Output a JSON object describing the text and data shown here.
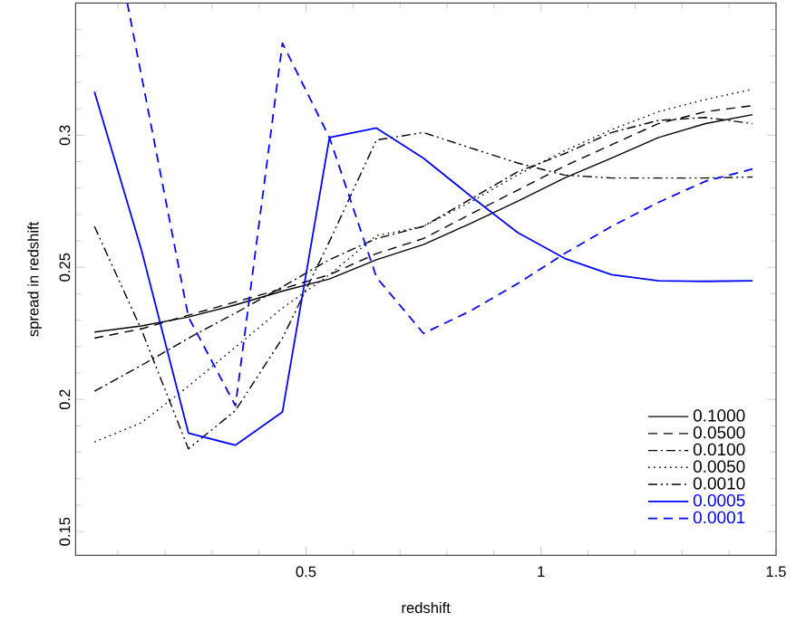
{
  "chart_data": {
    "type": "line",
    "xlabel": "redshift",
    "ylabel": "spread in redshift",
    "x": [
      0.05,
      0.15,
      0.25,
      0.35,
      0.45,
      0.55,
      0.65,
      0.75,
      0.85,
      0.95,
      1.05,
      1.15,
      1.25,
      1.35,
      1.45
    ],
    "xlim": [
      0.01,
      1.5
    ],
    "ylim": [
      0.141,
      0.35
    ],
    "xticks": [
      {
        "value": 0.1,
        "label": null
      },
      {
        "value": 0.2,
        "label": null
      },
      {
        "value": 0.3,
        "label": null
      },
      {
        "value": 0.4,
        "label": null
      },
      0.5,
      {
        "value": 0.6,
        "label": null
      },
      {
        "value": 0.7,
        "label": null
      },
      {
        "value": 0.8,
        "label": null
      },
      {
        "value": 0.9,
        "label": null
      },
      1,
      {
        "value": 1.1,
        "label": null
      },
      {
        "value": 1.2,
        "label": null
      },
      {
        "value": 1.3,
        "label": null
      },
      {
        "value": 1.4,
        "label": null
      },
      1.5
    ],
    "yticks": [
      0.15,
      {
        "value": 0.16,
        "label": null
      },
      {
        "value": 0.17,
        "label": null
      },
      {
        "value": 0.18,
        "label": null
      },
      {
        "value": 0.19,
        "label": null
      },
      0.2,
      {
        "value": 0.21,
        "label": null
      },
      {
        "value": 0.22,
        "label": null
      },
      {
        "value": 0.23,
        "label": null
      },
      {
        "value": 0.24,
        "label": null
      },
      0.25,
      {
        "value": 0.26,
        "label": null
      },
      {
        "value": 0.27,
        "label": null
      },
      {
        "value": 0.28,
        "label": null
      },
      {
        "value": 0.29,
        "label": null
      },
      0.3,
      {
        "value": 0.31,
        "label": null
      },
      {
        "value": 0.32,
        "label": null
      },
      {
        "value": 0.33,
        "label": null
      },
      {
        "value": 0.34,
        "label": null
      }
    ],
    "legend": "bottom right",
    "grid": false,
    "series": [
      {
        "name": "0.1000",
        "color": "#000000",
        "line_style": "solid",
        "values": [
          0.2255,
          0.2278,
          0.2312,
          0.2358,
          0.241,
          0.2456,
          0.2529,
          0.2586,
          0.2666,
          0.275,
          0.2838,
          0.2913,
          0.2991,
          0.3044,
          0.3078
        ]
      },
      {
        "name": "0.0500",
        "color": "#000000",
        "line_style": "dashed",
        "values": [
          0.2232,
          0.2267,
          0.2319,
          0.2369,
          0.2419,
          0.2472,
          0.2552,
          0.2609,
          0.2701,
          0.2792,
          0.2883,
          0.2964,
          0.3044,
          0.3089,
          0.3112
        ]
      },
      {
        "name": "0.0100",
        "color": "#000000",
        "line_style": "dashdot",
        "values": [
          0.2031,
          0.2129,
          0.2232,
          0.2327,
          0.2426,
          0.2529,
          0.2609,
          0.2655,
          0.2758,
          0.2861,
          0.293,
          0.301,
          0.3056,
          0.3067,
          0.3044
        ]
      },
      {
        "name": "0.0050",
        "color": "#000000",
        "line_style": "dotted",
        "values": [
          0.1839,
          0.1912,
          0.205,
          0.2198,
          0.2346,
          0.2472,
          0.262,
          0.2655,
          0.2747,
          0.285,
          0.2941,
          0.3021,
          0.3089,
          0.3135,
          0.3174
        ]
      },
      {
        "name": "0.0010",
        "color": "#000000",
        "line_style": "dashdotdot",
        "values": [
          0.2655,
          0.2264,
          0.1813,
          0.1958,
          0.2232,
          0.2598,
          0.2982,
          0.301,
          0.2952,
          0.2895,
          0.2849,
          0.2838,
          0.2838,
          0.2838,
          0.2842
        ]
      },
      {
        "name": "0.0005",
        "color": "#0000ff",
        "line_style": "solid",
        "values": [
          0.3165,
          0.2566,
          0.1873,
          0.1827,
          0.1953,
          0.2991,
          0.3027,
          0.2913,
          0.277,
          0.2632,
          0.2534,
          0.2472,
          0.2449,
          0.2447,
          0.2449
        ]
      },
      {
        "name": "0.0001",
        "color": "#0000ff",
        "line_style": "dashed",
        "x": [
          0.12,
          0.25,
          0.35,
          0.45,
          0.55,
          0.65,
          0.75,
          0.85,
          0.95,
          1.05,
          1.15,
          1.25,
          1.35,
          1.45
        ],
        "values": [
          0.35,
          0.2312,
          0.1976,
          0.3348,
          0.2991,
          0.2462,
          0.225,
          0.2335,
          0.2438,
          0.2552,
          0.2655,
          0.2746,
          0.2826,
          0.2872
        ]
      }
    ]
  }
}
